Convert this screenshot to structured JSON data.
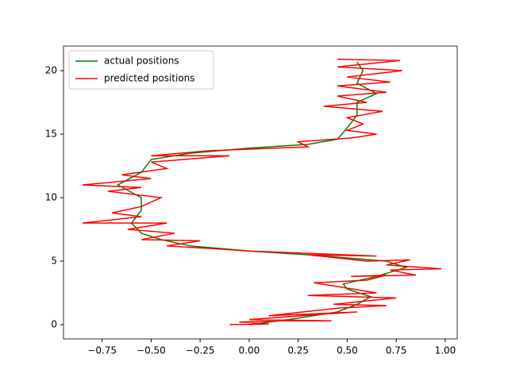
{
  "chart_data": {
    "type": "line",
    "legend": "upper left",
    "grid": false,
    "xlim": [
      -0.947,
      1.061
    ],
    "ylim": [
      -1.125,
      21.94
    ],
    "xticks": [
      {
        "value": -0.75,
        "label": "−0.75"
      },
      {
        "value": -0.5,
        "label": "−0.50"
      },
      {
        "value": -0.25,
        "label": "−0.25"
      },
      {
        "value": 0,
        "label": "0.00"
      },
      0.25,
      {
        "value": 0.5,
        "label": "0.50"
      },
      0.75,
      {
        "value": 1,
        "label": "1.00"
      }
    ],
    "yticks": [
      0,
      5,
      10,
      15,
      20
    ],
    "series": [
      {
        "name": "actual positions",
        "color": "#008000",
        "x": [
          0,
          0.2,
          0.45,
          0.55,
          0.62,
          0.5,
          0.48,
          0.65,
          0.8,
          0.7,
          0.3,
          0,
          -0.3,
          -0.45,
          -0.55,
          -0.6,
          -0.55,
          -0.55,
          -0.67,
          -0.55,
          -0.5,
          -0.3,
          0,
          0.3,
          0.45,
          0.5,
          0.55,
          0.55,
          0.65,
          0.55,
          0.58,
          0.55
        ],
        "values": [
          0,
          0.4,
          1,
          1.6,
          2.2,
          2.8,
          3.2,
          3.8,
          4.5,
          5,
          5.5,
          5.8,
          6.2,
          6.7,
          7.2,
          8,
          9,
          10,
          11,
          12,
          13,
          13.5,
          13.9,
          14.2,
          14.6,
          15.5,
          16.5,
          17.5,
          18.2,
          19,
          20,
          20.7
        ]
      },
      {
        "name": "predicted positions",
        "color": "#ff0000",
        "x": [
          -0.1,
          0.1,
          -0.05,
          0.15,
          0.42,
          0,
          0.35,
          0.55,
          0.1,
          0.45,
          0.7,
          0.43,
          0.75,
          0.3,
          0.65,
          0.45,
          0.33,
          0.6,
          0.7,
          0.52,
          0.85,
          0.72,
          0.98,
          0.7,
          0.82,
          0.6,
          0.3,
          0.65,
          0,
          -0.2,
          -0.42,
          -0.25,
          -0.55,
          -0.38,
          -0.62,
          -0.42,
          -0.85,
          -0.55,
          -0.7,
          -0.55,
          -0.45,
          -0.72,
          -0.55,
          -0.85,
          -0.5,
          -0.65,
          -0.42,
          -0.5,
          -0.1,
          -0.5,
          -0.2,
          0.3,
          0.25,
          0.52,
          0.65,
          0.5,
          0.58,
          0.5,
          0.68,
          0.38,
          0.6,
          0.45,
          0.7,
          0.45,
          0.72,
          0.5,
          0.78,
          0.45,
          0.77,
          0.45
        ],
        "values": [
          0,
          0.05,
          0.2,
          0.3,
          0.3,
          0.4,
          0.8,
          1,
          0.7,
          1.3,
          1.5,
          1.6,
          2.1,
          2.3,
          2.5,
          3,
          3.3,
          3.5,
          3.9,
          3.8,
          3.9,
          4.3,
          4.4,
          4.7,
          5.1,
          5,
          5.5,
          5.4,
          5.8,
          6,
          6.2,
          6.6,
          6.7,
          7.2,
          7.5,
          8,
          8,
          8.5,
          8.8,
          9.3,
          10,
          10.5,
          10.8,
          11,
          11.5,
          11.8,
          12.3,
          12.8,
          13.3,
          13.3,
          13.7,
          14,
          14.4,
          14.7,
          15,
          15.3,
          15.8,
          16.3,
          16.8,
          17.2,
          17.5,
          18,
          18.3,
          18.8,
          19.1,
          19.5,
          20,
          20.3,
          20.8,
          20.9
        ]
      }
    ]
  }
}
